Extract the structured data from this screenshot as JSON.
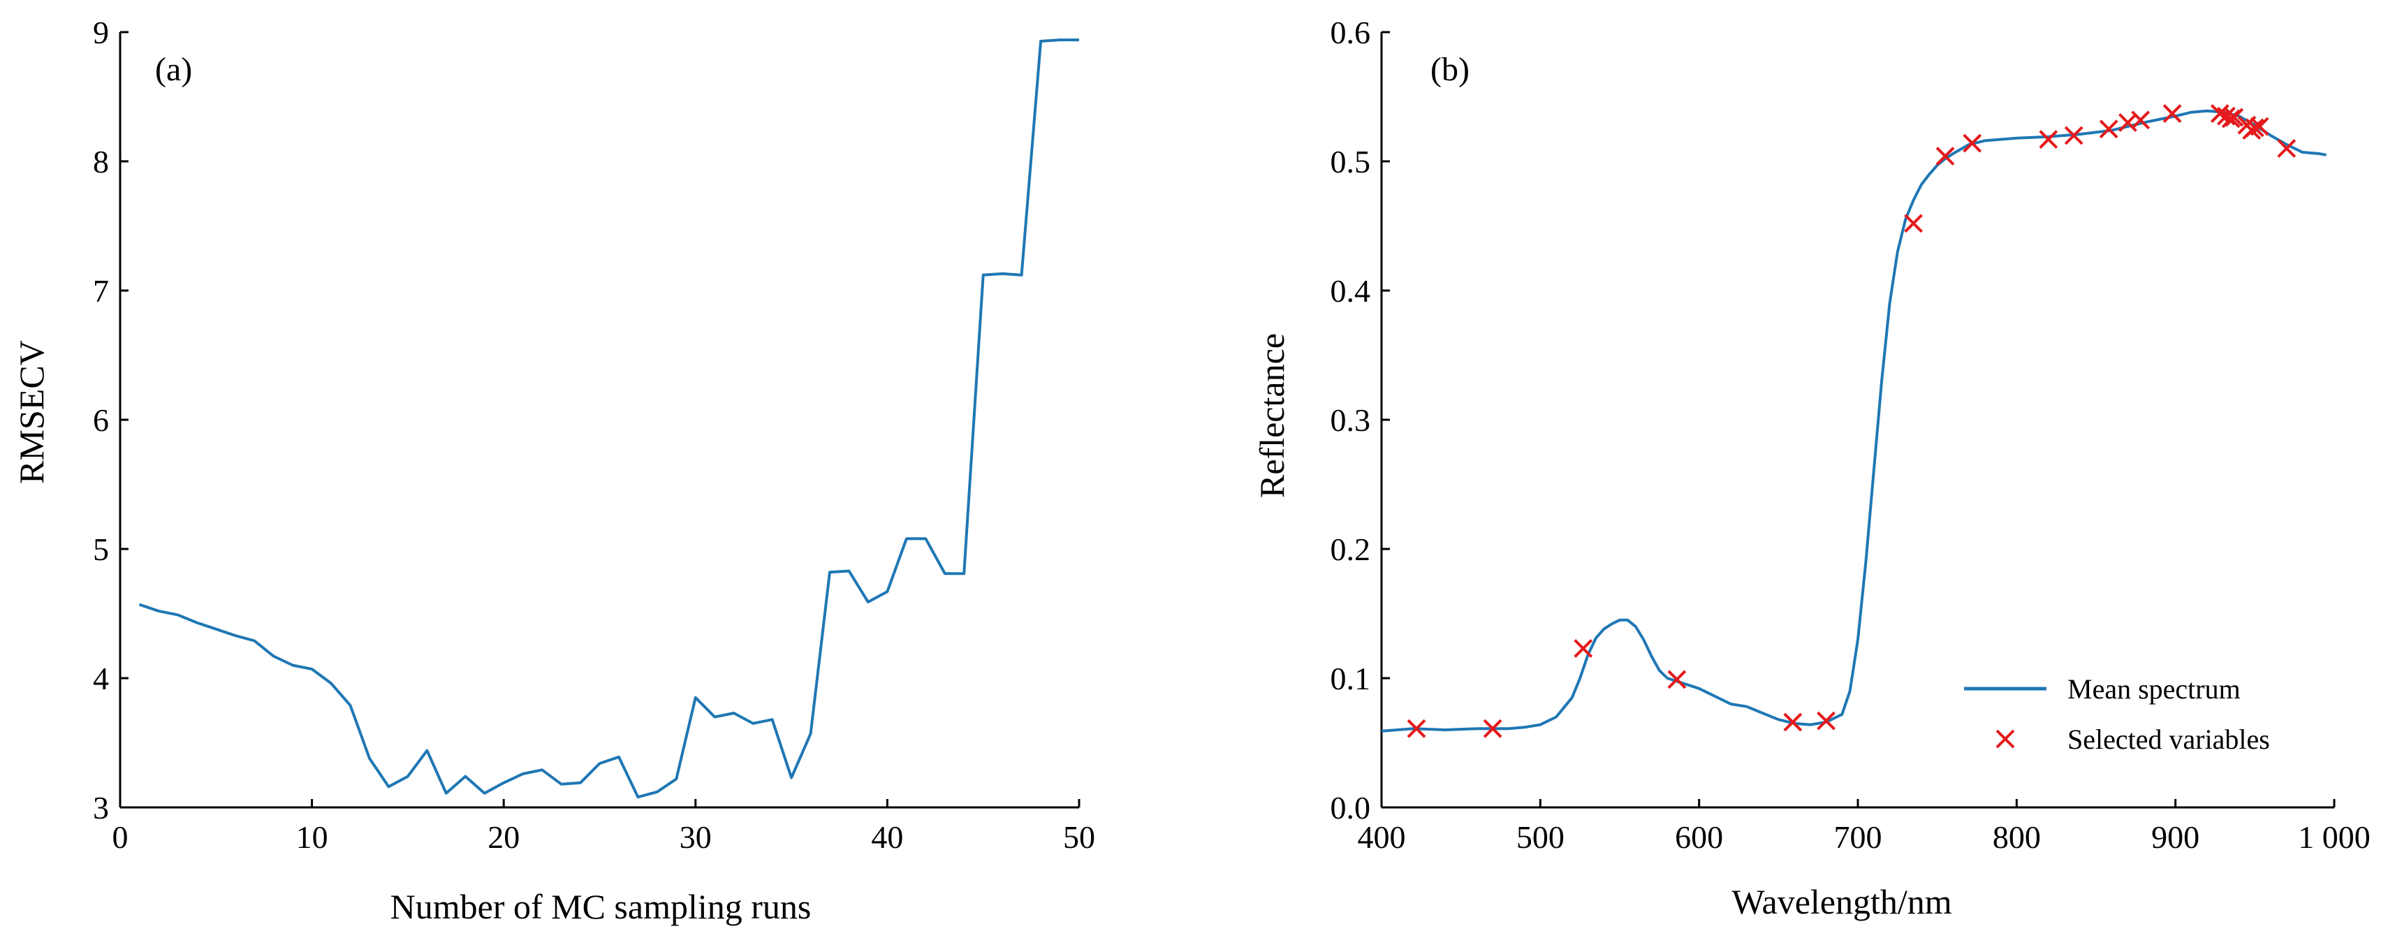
{
  "chart_data": [
    {
      "type": "line",
      "panel_label": "(a)",
      "xlabel": "Number of MC sampling runs",
      "ylabel": "RMSECV",
      "xlim": [
        0,
        50
      ],
      "ylim": [
        3,
        9
      ],
      "xticks": [
        0,
        10,
        20,
        30,
        40,
        50
      ],
      "xtick_labels": [
        "0",
        "10",
        "20",
        "30",
        "40",
        "50"
      ],
      "yticks": [
        3,
        4,
        5,
        6,
        7,
        8,
        9
      ],
      "ytick_labels": [
        "3",
        "4",
        "5",
        "6",
        "7",
        "8",
        "9"
      ],
      "grid": false,
      "line_color": "#1f77b4",
      "series": [
        {
          "x": [
            1,
            2,
            3,
            4,
            5,
            6,
            7,
            8,
            9,
            10,
            11,
            12,
            13,
            14,
            15,
            16,
            17,
            18,
            19,
            20,
            21,
            22,
            23,
            24,
            25,
            26,
            27,
            28,
            29,
            30,
            31,
            32,
            33,
            34,
            35,
            36,
            37,
            38,
            39,
            40,
            41,
            42,
            43,
            44,
            45,
            46,
            47,
            48,
            49,
            50
          ],
          "values": [
            4.57,
            4.52,
            4.49,
            4.43,
            4.38,
            4.33,
            4.29,
            4.17,
            4.1,
            4.07,
            3.96,
            3.79,
            3.38,
            3.16,
            3.24,
            3.44,
            3.11,
            3.24,
            3.11,
            3.19,
            3.26,
            3.29,
            3.18,
            3.19,
            3.34,
            3.39,
            3.08,
            3.12,
            3.22,
            3.85,
            3.7,
            3.73,
            3.65,
            3.68,
            3.23,
            3.57,
            4.82,
            4.83,
            4.59,
            4.67,
            5.08,
            5.08,
            4.81,
            4.81,
            7.12,
            7.13,
            7.12,
            8.93,
            8.94,
            8.94
          ]
        }
      ]
    },
    {
      "type": "line",
      "panel_label": "(b)",
      "xlabel": "Wavelength/nm",
      "ylabel": "Reflectance",
      "xlim": [
        400,
        1000
      ],
      "ylim": [
        0,
        0.6
      ],
      "xticks": [
        400,
        500,
        600,
        700,
        800,
        900,
        1000
      ],
      "xtick_labels": [
        "400",
        "500",
        "600",
        "700",
        "800",
        "900",
        "1 000"
      ],
      "yticks": [
        0,
        0.1,
        0.2,
        0.3,
        0.4,
        0.5,
        0.6
      ],
      "ytick_labels": [
        "0.0",
        "0.1",
        "0.2",
        "0.3",
        "0.4",
        "0.5",
        "0.6"
      ],
      "grid": false,
      "legend_position": "bottom-right",
      "series": [
        {
          "name": "Mean spectrum",
          "color": "#1f77b4",
          "x": [
            400,
            420,
            440,
            460,
            480,
            490,
            500,
            510,
            520,
            525,
            530,
            535,
            540,
            545,
            550,
            555,
            560,
            565,
            570,
            575,
            580,
            585,
            590,
            600,
            610,
            620,
            630,
            640,
            650,
            660,
            670,
            680,
            690,
            695,
            700,
            705,
            710,
            715,
            720,
            725,
            730,
            735,
            740,
            745,
            750,
            755,
            760,
            770,
            780,
            800,
            820,
            840,
            860,
            880,
            900,
            910,
            920,
            930,
            940,
            950,
            960,
            970,
            980,
            990,
            995
          ],
          "values": [
            0.059,
            0.061,
            0.06,
            0.061,
            0.061,
            0.062,
            0.064,
            0.07,
            0.085,
            0.1,
            0.118,
            0.131,
            0.138,
            0.142,
            0.145,
            0.145,
            0.14,
            0.13,
            0.117,
            0.106,
            0.1,
            0.098,
            0.096,
            0.092,
            0.086,
            0.08,
            0.078,
            0.073,
            0.068,
            0.065,
            0.064,
            0.066,
            0.072,
            0.09,
            0.13,
            0.19,
            0.26,
            0.33,
            0.39,
            0.43,
            0.455,
            0.47,
            0.482,
            0.49,
            0.497,
            0.502,
            0.506,
            0.513,
            0.516,
            0.518,
            0.519,
            0.521,
            0.524,
            0.53,
            0.535,
            0.538,
            0.539,
            0.538,
            0.535,
            0.528,
            0.52,
            0.513,
            0.507,
            0.506,
            0.505
          ]
        },
        {
          "name": "Selected variables",
          "color": "#e41a1c",
          "marker": "x",
          "x": [
            422,
            470,
            527,
            586,
            659,
            680,
            735,
            755,
            772,
            820,
            836,
            858,
            870,
            878,
            898,
            928,
            932,
            935,
            937,
            945,
            948,
            950,
            953,
            970
          ],
          "values": [
            0.061,
            0.061,
            0.123,
            0.099,
            0.066,
            0.067,
            0.452,
            0.504,
            0.514,
            0.517,
            0.52,
            0.525,
            0.53,
            0.532,
            0.537,
            0.537,
            0.535,
            0.533,
            0.534,
            0.528,
            0.524,
            0.526,
            0.527,
            0.51
          ]
        }
      ]
    }
  ]
}
